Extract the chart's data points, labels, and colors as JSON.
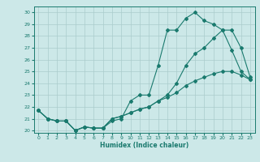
{
  "xlabel": "Humidex (Indice chaleur)",
  "bg_color": "#cce8e8",
  "line_color": "#1a7a6e",
  "grid_color": "#aacccc",
  "xlim": [
    -0.5,
    23.5
  ],
  "ylim": [
    19.8,
    30.5
  ],
  "xticks": [
    0,
    1,
    2,
    3,
    4,
    5,
    6,
    7,
    8,
    9,
    10,
    11,
    12,
    13,
    14,
    15,
    16,
    17,
    18,
    19,
    20,
    21,
    22,
    23
  ],
  "yticks": [
    20,
    21,
    22,
    23,
    24,
    25,
    26,
    27,
    28,
    29,
    30
  ],
  "line1_x": [
    0,
    1,
    2,
    3,
    4,
    5,
    6,
    7,
    8,
    9,
    10,
    11,
    12,
    13,
    14,
    15,
    16,
    17,
    18,
    19,
    20,
    21,
    22,
    23
  ],
  "line1_y": [
    21.7,
    21.0,
    20.8,
    20.8,
    20.0,
    20.3,
    20.2,
    20.2,
    20.8,
    21.0,
    22.5,
    23.0,
    23.0,
    25.5,
    28.5,
    28.5,
    29.5,
    30.0,
    29.3,
    29.0,
    28.5,
    26.8,
    25.0,
    24.3
  ],
  "line2_x": [
    0,
    1,
    2,
    3,
    4,
    5,
    6,
    7,
    8,
    9,
    10,
    11,
    12,
    13,
    14,
    15,
    16,
    17,
    18,
    19,
    20,
    21,
    22,
    23
  ],
  "line2_y": [
    21.7,
    21.0,
    20.8,
    20.8,
    20.0,
    20.3,
    20.2,
    20.2,
    21.0,
    21.2,
    21.5,
    21.8,
    22.0,
    22.5,
    23.0,
    24.0,
    25.5,
    26.5,
    27.0,
    27.8,
    28.5,
    28.5,
    27.0,
    24.5
  ],
  "line3_x": [
    0,
    1,
    2,
    3,
    4,
    5,
    6,
    7,
    8,
    9,
    10,
    11,
    12,
    13,
    14,
    15,
    16,
    17,
    18,
    19,
    20,
    21,
    22,
    23
  ],
  "line3_y": [
    21.7,
    21.0,
    20.8,
    20.8,
    20.0,
    20.3,
    20.2,
    20.2,
    21.0,
    21.2,
    21.5,
    21.8,
    22.0,
    22.5,
    22.8,
    23.2,
    23.8,
    24.2,
    24.5,
    24.8,
    25.0,
    25.0,
    24.7,
    24.3
  ]
}
